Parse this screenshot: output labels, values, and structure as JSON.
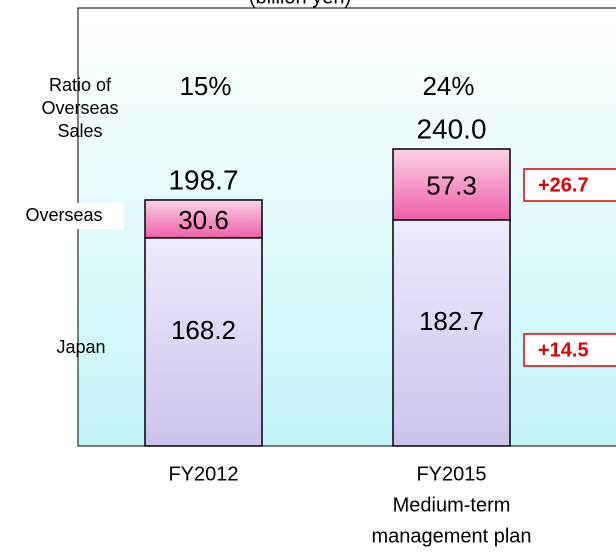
{
  "chart_data": {
    "type": "stacked_bar",
    "unit_label": "(billion yen)",
    "categories": [
      [
        "FY2012"
      ],
      [
        "FY2015",
        "Medium-term",
        "management plan"
      ]
    ],
    "series": [
      {
        "name": "Japan",
        "color": "#cbc3ee",
        "values": [
          168.2,
          182.7
        ]
      },
      {
        "name": "Overseas",
        "color": "#ee5fa8",
        "values": [
          30.6,
          57.3
        ]
      }
    ],
    "totals": [
      198.7,
      240.0
    ],
    "totals_value_labels": [
      "198.7",
      "240.0"
    ],
    "ratio_title": [
      "Ratio of",
      "Overseas",
      "Sales"
    ],
    "ratios": [
      15,
      24
    ],
    "ratios_value_labels": [
      "15%",
      "24%"
    ],
    "differences": [
      14.5,
      26.7
    ],
    "differences_value_labels": [
      "+14.5",
      "+26.7"
    ]
  }
}
